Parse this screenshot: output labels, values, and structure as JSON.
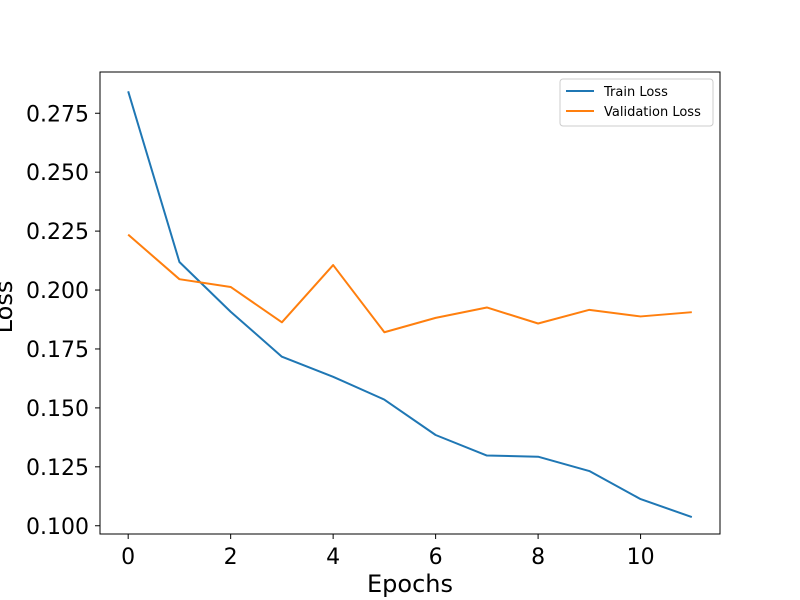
{
  "chart_data": {
    "type": "line",
    "xlabel": "Epochs",
    "ylabel": "Loss",
    "x": [
      0,
      1,
      2,
      3,
      4,
      5,
      6,
      7,
      8,
      9,
      10,
      11
    ],
    "xlim": [
      -0.55,
      11.55
    ],
    "ylim": [
      0.0965,
      0.2925
    ],
    "xticks": [
      0,
      2,
      4,
      6,
      8,
      10
    ],
    "xtick_labels": [
      "0",
      "2",
      "4",
      "6",
      "8",
      "10"
    ],
    "yticks": [
      0.1,
      0.125,
      0.15,
      0.175,
      0.2,
      0.225,
      0.25,
      0.275
    ],
    "ytick_labels": [
      "0.100",
      "0.125",
      "0.150",
      "0.175",
      "0.200",
      "0.225",
      "0.250",
      "0.275"
    ],
    "grid": false,
    "legend_position": "top-right",
    "series": [
      {
        "name": "Train Loss",
        "color": "#1f77b4",
        "values": [
          0.2843,
          0.2119,
          0.1908,
          0.1717,
          0.1632,
          0.1535,
          0.1385,
          0.1298,
          0.1293,
          0.1232,
          0.1113,
          0.1037
        ]
      },
      {
        "name": "Validation Loss",
        "color": "#ff7f0e",
        "values": [
          0.2235,
          0.2046,
          0.2013,
          0.1863,
          0.2106,
          0.1821,
          0.1882,
          0.1926,
          0.1858,
          0.1916,
          0.1888,
          0.1906
        ]
      }
    ]
  }
}
